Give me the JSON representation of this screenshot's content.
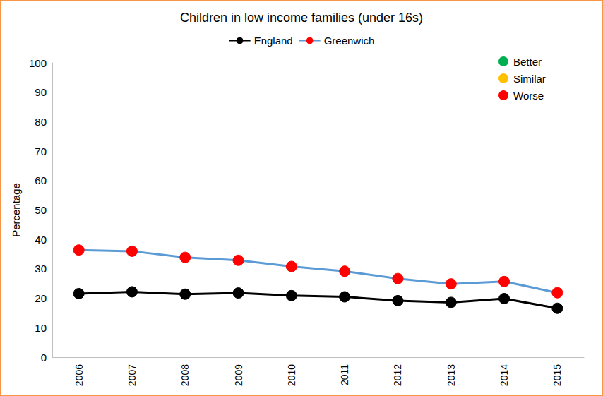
{
  "chart_data": {
    "type": "line",
    "title": "Children in low income families (under 16s)",
    "y_label": "Percentage",
    "categories": [
      "2006",
      "2007",
      "2008",
      "2009",
      "2010",
      "2011",
      "2012",
      "2013",
      "2014",
      "2015"
    ],
    "series": [
      {
        "name": "England",
        "color": "#000000",
        "marker": "circle",
        "values": [
          21.6,
          22.2,
          21.4,
          21.8,
          20.9,
          20.5,
          19.2,
          18.6,
          19.9,
          16.6
        ]
      },
      {
        "name": "Greenwich",
        "color": "#5b9bd5",
        "marker": "circle",
        "colors": [
          "#ff0000",
          "#ff0000",
          "#ff0000",
          "#ff0000",
          "#ff0000",
          "#ff0000",
          "#ff0000",
          "#ff0000",
          "#ff0000",
          "#ff0000"
        ],
        "values": [
          36.4,
          36.0,
          33.9,
          32.9,
          30.8,
          29.2,
          26.7,
          24.9,
          25.7,
          21.9
        ]
      }
    ],
    "annotations": [
      {
        "text": "Better",
        "color": "#00b050"
      },
      {
        "text": "Similar",
        "color": "#ffc000"
      },
      {
        "text": "Worse",
        "color": "#ff0000"
      }
    ],
    "ylim": [
      0,
      100
    ],
    "yticks": [
      0,
      10,
      20,
      30,
      40,
      50,
      60,
      70,
      80,
      90,
      100
    ],
    "grid": false,
    "legend": "top"
  }
}
